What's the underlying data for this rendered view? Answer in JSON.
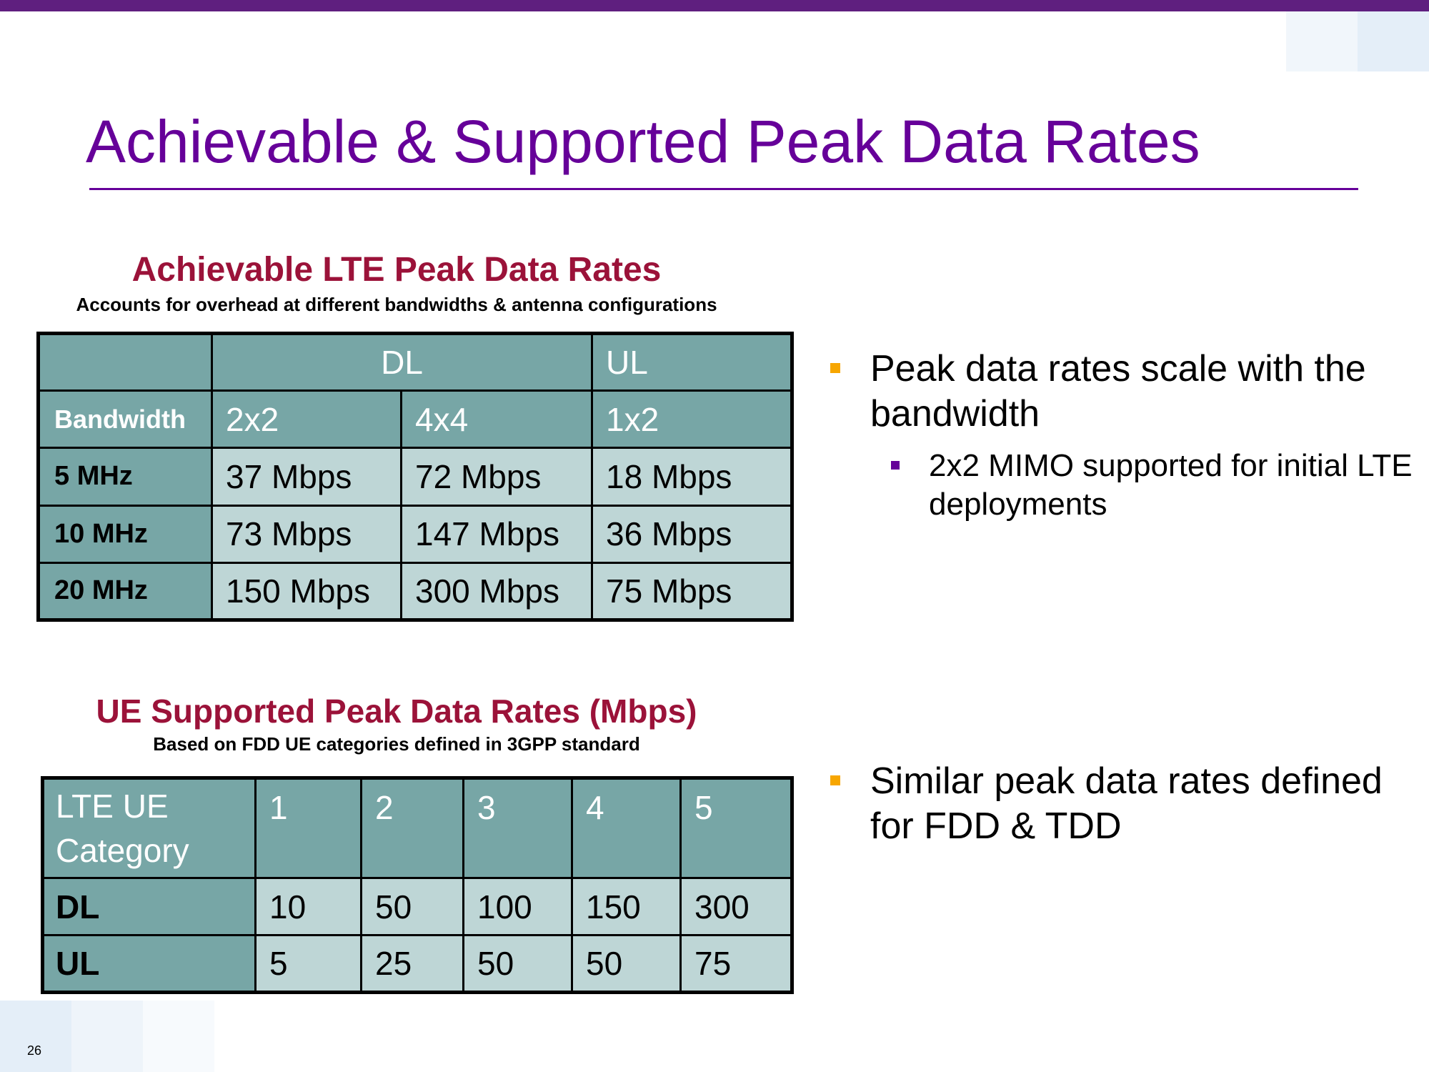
{
  "slide": {
    "title": "Achievable & Supported Peak Data Rates",
    "page_number": "26"
  },
  "achievable": {
    "title": "Achievable LTE Peak Data Rates",
    "subtitle": "Accounts for overhead at different bandwidths & antenna configurations",
    "header_row1": [
      "",
      "DL",
      "UL"
    ],
    "header_row2": [
      "Bandwidth",
      "2x2",
      "4x4",
      "1x2"
    ],
    "rows": [
      [
        "5 MHz",
        "37 Mbps",
        "72 Mbps",
        "18 Mbps"
      ],
      [
        "10 MHz",
        "73 Mbps",
        "147 Mbps",
        "36 Mbps"
      ],
      [
        "20 MHz",
        "150 Mbps",
        "300 Mbps",
        "75 Mbps"
      ]
    ]
  },
  "ue": {
    "title": "UE Supported Peak Data Rates (Mbps)",
    "subtitle": "Based on FDD UE categories defined in 3GPP standard",
    "header": [
      "LTE UE Category",
      "1",
      "2",
      "3",
      "4",
      "5"
    ],
    "rows": [
      [
        "DL",
        "10",
        "50",
        "100",
        "150",
        "300"
      ],
      [
        "UL",
        "5",
        "25",
        "50",
        "50",
        "75"
      ]
    ]
  },
  "bullets_top": {
    "main": "Peak data rates scale with the bandwidth",
    "sub": "2x2 MIMO supported for initial LTE deployments"
  },
  "bullets_bottom": {
    "main": "Similar peak data rates defined for FDD & TDD"
  },
  "colors": {
    "top_bar": "#5f1f7f",
    "title": "#660099",
    "section_title": "#9b1239",
    "table_dark": "#77a6a6",
    "table_light": "#bed6d6",
    "bullet_main": "#f7a600",
    "bullet_sub": "#660099"
  }
}
